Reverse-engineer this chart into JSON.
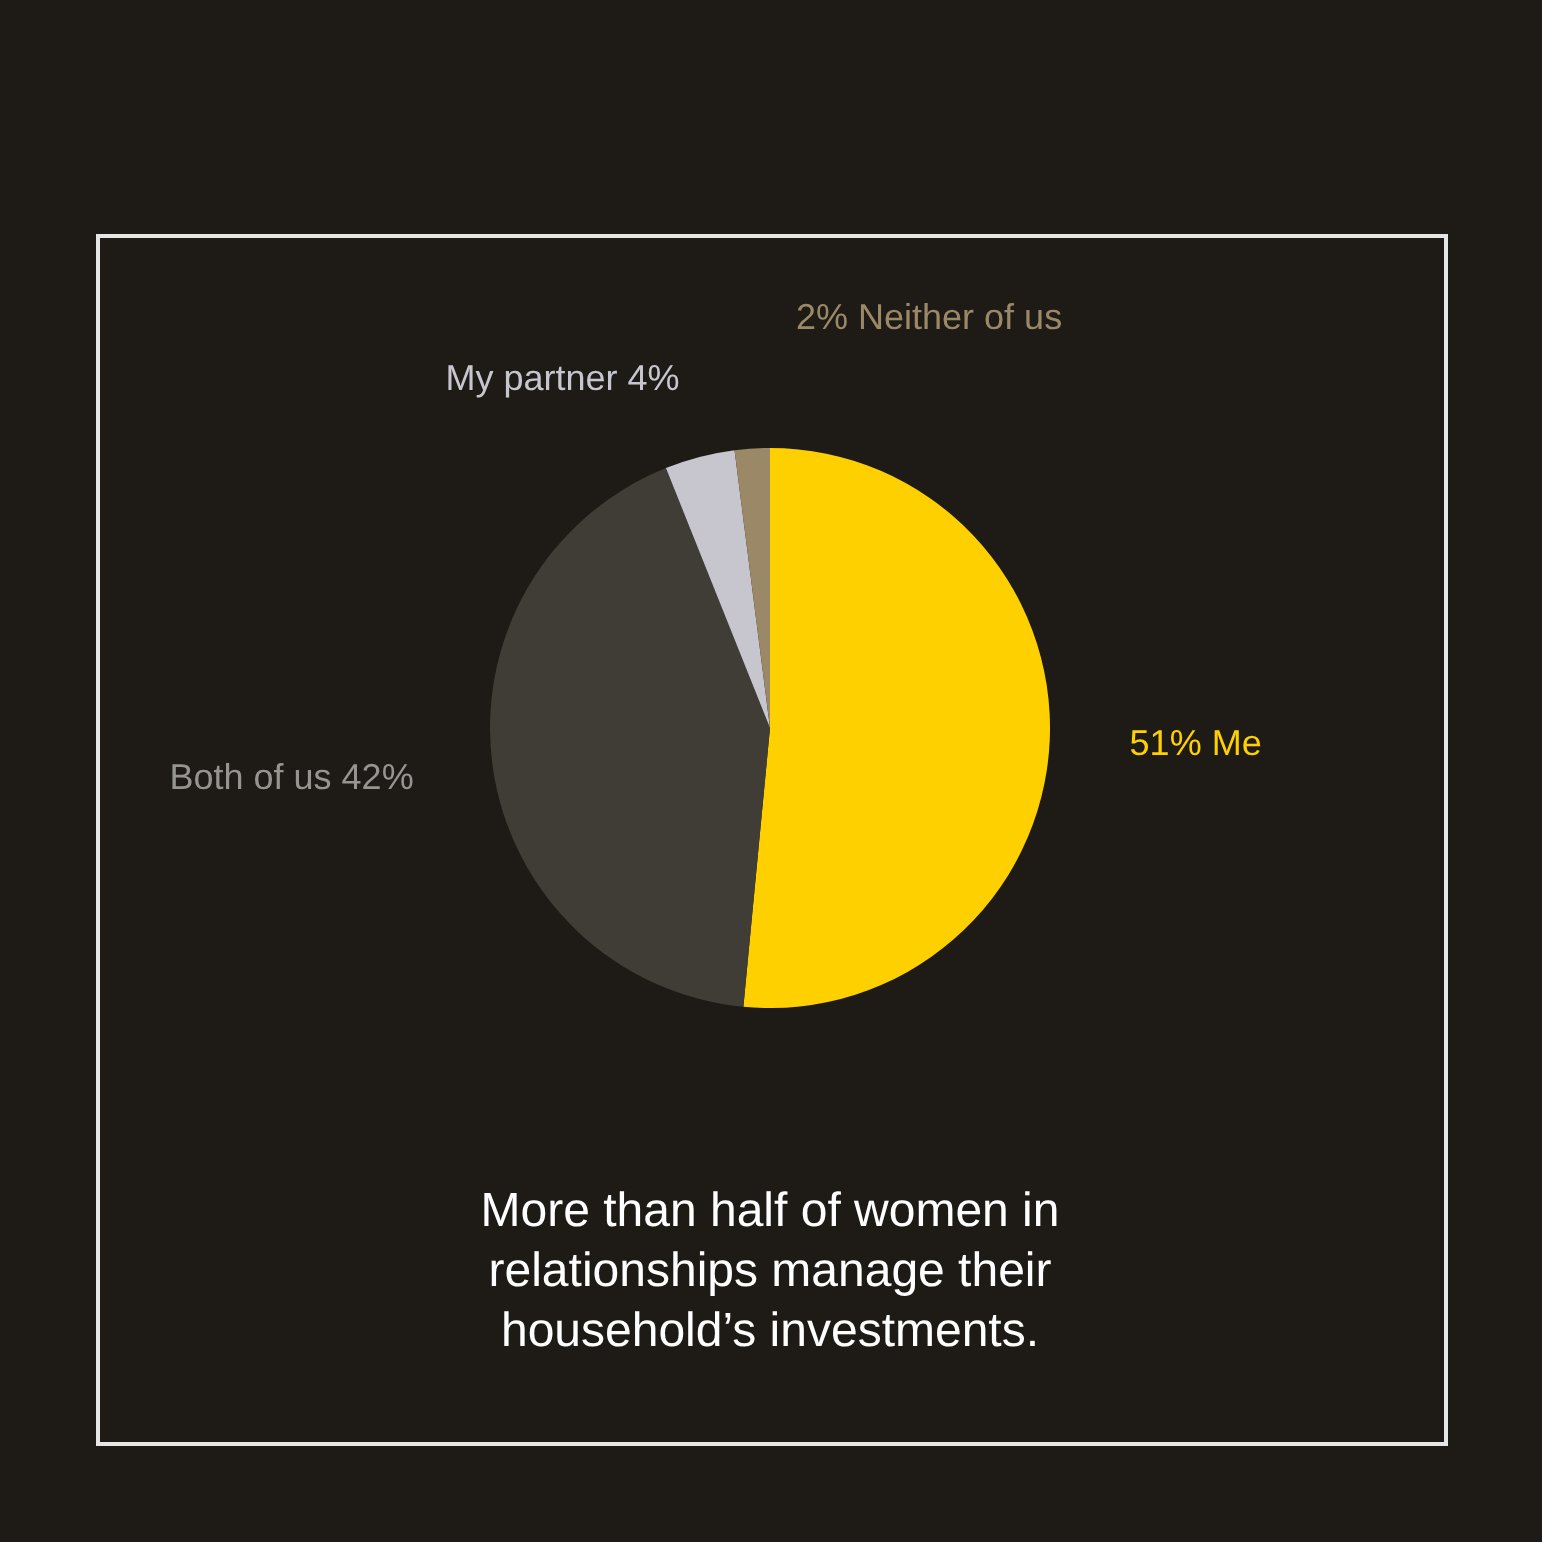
{
  "chart_data": {
    "type": "pie",
    "title": "More than half of women in relationships manage their household’s investments.",
    "categories": [
      "Me",
      "Both of us",
      "My partner",
      "Neither of us"
    ],
    "values": [
      51,
      42,
      4,
      2
    ],
    "colors": [
      "#ffd000",
      "#403d36",
      "#c7c6cf",
      "#9b8866"
    ],
    "value_labels": [
      "51%",
      "42%",
      "4%",
      "2%"
    ],
    "legend": false
  }
}
